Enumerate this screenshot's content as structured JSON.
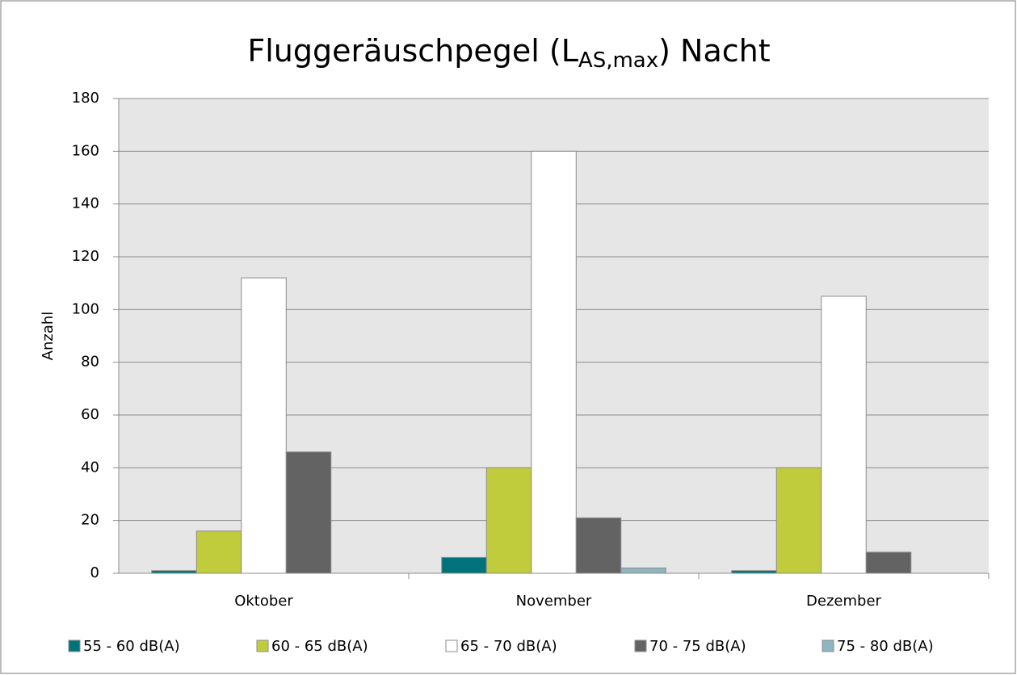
{
  "chart_data": {
    "type": "bar",
    "title": [
      "Fluggeräuschpegel (L",
      "AS,max",
      ") Nacht"
    ],
    "y_label": "Anzahl",
    "categories": [
      "Oktober",
      "November",
      "Dezember"
    ],
    "series": [
      {
        "name": "55 - 60 dB(A)",
        "color": "#00737a",
        "values": [
          1,
          6,
          1
        ]
      },
      {
        "name": "60 - 65 dB(A)",
        "color": "#c0cc3c",
        "values": [
          16,
          40,
          40
        ]
      },
      {
        "name": "65 - 70 dB(A)",
        "color": "#ffffff",
        "values": [
          112,
          160,
          105
        ]
      },
      {
        "name": "70 - 75 dB(A)",
        "color": "#636363",
        "values": [
          46,
          21,
          8
        ]
      },
      {
        "name": "75 - 80 dB(A)",
        "color": "#8fb5c0",
        "values": [
          0,
          2,
          0
        ]
      }
    ],
    "ylim": [
      0,
      180
    ],
    "yticks": [
      0,
      20,
      40,
      60,
      80,
      100,
      120,
      140,
      160,
      180
    ],
    "grid": true,
    "legend": "bottom"
  }
}
